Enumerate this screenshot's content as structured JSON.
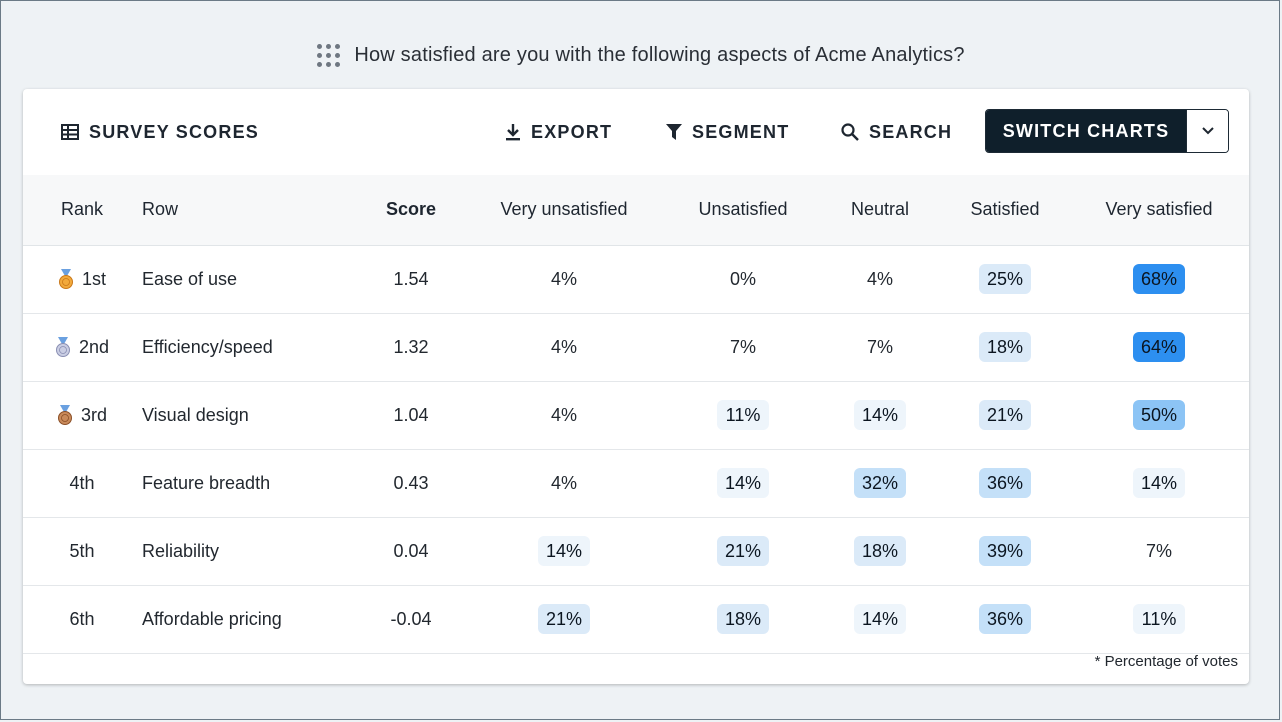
{
  "question": "How satisfied are you with the following aspects of Acme Analytics?",
  "toolbar": {
    "title": "SURVEY SCORES",
    "export": "EXPORT",
    "segment": "SEGMENT",
    "search": "SEARCH",
    "switch_charts": "SWITCH CHARTS"
  },
  "table": {
    "headers": {
      "rank": "Rank",
      "row": "Row",
      "score": "Score",
      "c1": "Very unsatisfied",
      "c2": "Unsatisfied",
      "c3": "Neutral",
      "c4": "Satisfied",
      "c5": "Very satisfied"
    },
    "rows": [
      {
        "rank": "1st",
        "medal": "gold-medal-icon",
        "name": "Ease of use",
        "score": "1.54",
        "c1": "4%",
        "c2": "0%",
        "c3": "4%",
        "c4": "25%",
        "c5": "68%"
      },
      {
        "rank": "2nd",
        "medal": "silver-medal-icon",
        "name": "Efficiency/speed",
        "score": "1.32",
        "c1": "4%",
        "c2": "7%",
        "c3": "7%",
        "c4": "18%",
        "c5": "64%"
      },
      {
        "rank": "3rd",
        "medal": "bronze-medal-icon",
        "name": "Visual design",
        "score": "1.04",
        "c1": "4%",
        "c2": "11%",
        "c3": "14%",
        "c4": "21%",
        "c5": "50%"
      },
      {
        "rank": "4th",
        "medal": "",
        "name": "Feature breadth",
        "score": "0.43",
        "c1": "4%",
        "c2": "14%",
        "c3": "32%",
        "c4": "36%",
        "c5": "14%"
      },
      {
        "rank": "5th",
        "medal": "",
        "name": "Reliability",
        "score": "0.04",
        "c1": "14%",
        "c2": "21%",
        "c3": "18%",
        "c4": "39%",
        "c5": "7%"
      },
      {
        "rank": "6th",
        "medal": "",
        "name": "Affordable pricing",
        "score": "-0.04",
        "c1": "21%",
        "c2": "18%",
        "c3": "14%",
        "c4": "36%",
        "c5": "11%"
      }
    ]
  },
  "footnote": "* Percentage of votes",
  "colors": {
    "dark_button": "#0f1f2b",
    "heat_strong": "#2d8ff0",
    "heat_light": "#eef5fb"
  }
}
